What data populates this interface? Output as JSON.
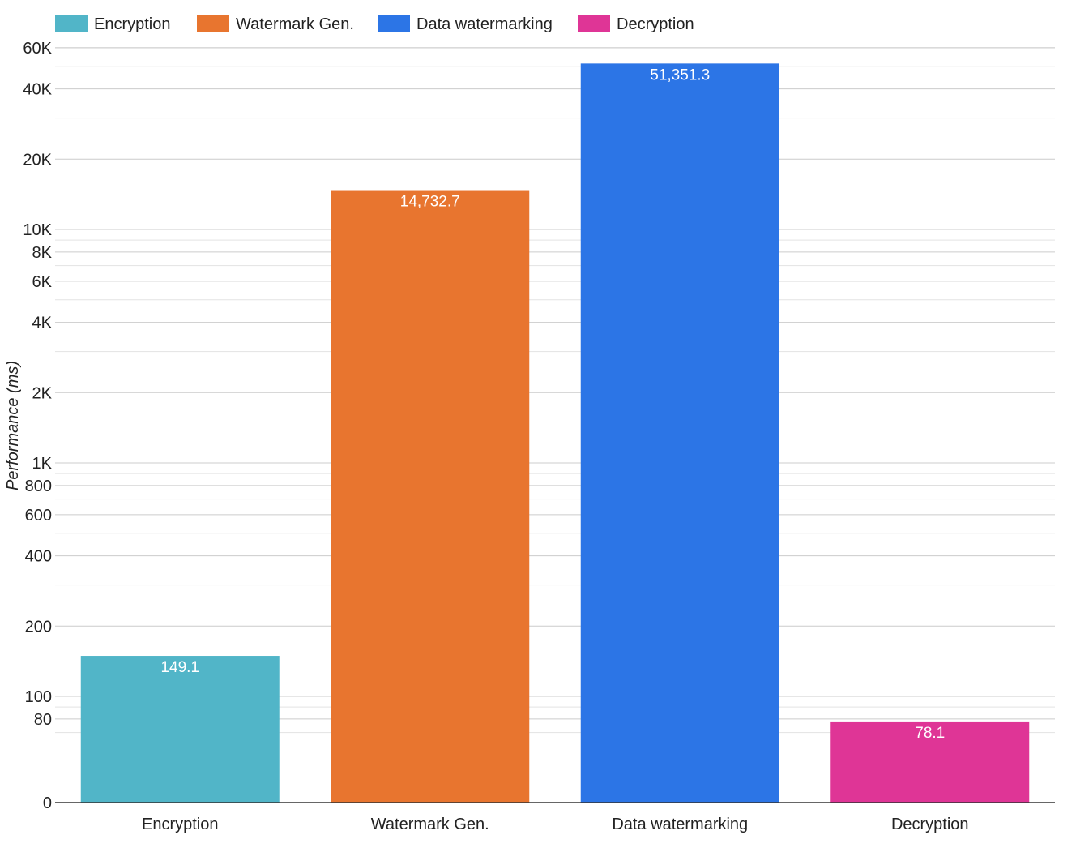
{
  "chart_data": {
    "type": "bar",
    "yscale": "log",
    "ylabel": "Performance (ms)",
    "grid": true,
    "legend_position": "top-left",
    "categories": [
      "Encryption",
      "Watermark Gen.",
      "Data watermarking",
      "Decryption"
    ],
    "values": [
      149.1,
      14732.7,
      51351.3,
      78.1
    ],
    "data_labels": [
      "149.1",
      "14,732.7",
      "51,351.3",
      "78.1"
    ],
    "colors": [
      "#51b5c8",
      "#e8752f",
      "#2c75e6",
      "#df3596"
    ],
    "legend": [
      "Encryption",
      "Watermark Gen.",
      "Data watermarking",
      "Decryption"
    ],
    "y_ticks": [
      {
        "value": 60000,
        "label": "60K"
      },
      {
        "value": 40000,
        "label": "40K"
      },
      {
        "value": 20000,
        "label": "20K"
      },
      {
        "value": 10000,
        "label": "10K"
      },
      {
        "value": 8000,
        "label": "8K"
      },
      {
        "value": 6000,
        "label": "6K"
      },
      {
        "value": 4000,
        "label": "4K"
      },
      {
        "value": 2000,
        "label": "2K"
      },
      {
        "value": 1000,
        "label": "1K"
      },
      {
        "value": 800,
        "label": "800"
      },
      {
        "value": 600,
        "label": "600"
      },
      {
        "value": 400,
        "label": "400"
      },
      {
        "value": 200,
        "label": "200"
      },
      {
        "value": 100,
        "label": "100"
      },
      {
        "value": 80,
        "label": "80"
      },
      {
        "value": 0,
        "label": "0"
      }
    ],
    "ylim": [
      0,
      60000
    ]
  }
}
